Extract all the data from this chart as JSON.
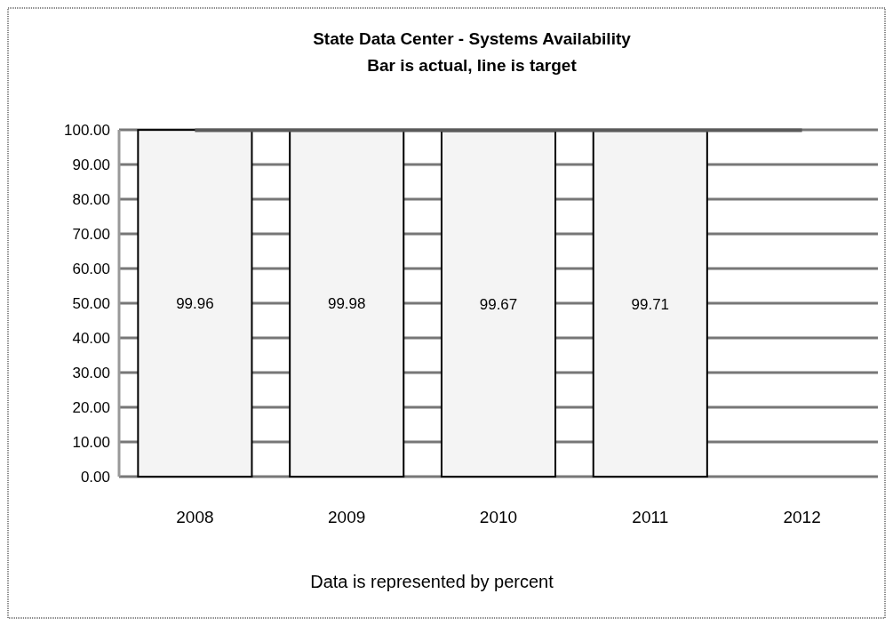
{
  "chart_data": {
    "type": "bar",
    "title": "State Data Center - Systems Availability",
    "subtitle": "Bar is actual,  line is target",
    "xlabel": "Data is represented by percent",
    "categories": [
      "2008",
      "2009",
      "2010",
      "2011",
      "2012"
    ],
    "series": [
      {
        "color": "#f4f4f4",
        "values": [
          99.96,
          99.98,
          99.67,
          99.71,
          null
        ],
        "value_labels": [
          "99.96",
          "99.98",
          "99.67",
          "99.71",
          null
        ]
      },
      {
        "type": "line",
        "color": "#5a5a5a",
        "values": [
          99.9,
          99.9,
          99.9,
          99.9,
          99.9
        ]
      }
    ],
    "ylim": [
      0,
      100
    ],
    "yticks": [
      {
        "value": 0,
        "label": "0.00"
      },
      {
        "value": 10,
        "label": "10.00"
      },
      {
        "value": 20,
        "label": "20.00"
      },
      {
        "value": 30,
        "label": "30.00"
      },
      {
        "value": 40,
        "label": "40.00"
      },
      {
        "value": 50,
        "label": "50.00"
      },
      {
        "value": 60,
        "label": "60.00"
      },
      {
        "value": 70,
        "label": "70.00"
      },
      {
        "value": 80,
        "label": "80.00"
      },
      {
        "value": 90,
        "label": "90.00"
      },
      {
        "value": 100,
        "label": "100.00"
      }
    ],
    "grid": "y",
    "marker": "none",
    "line_style": "solid"
  }
}
